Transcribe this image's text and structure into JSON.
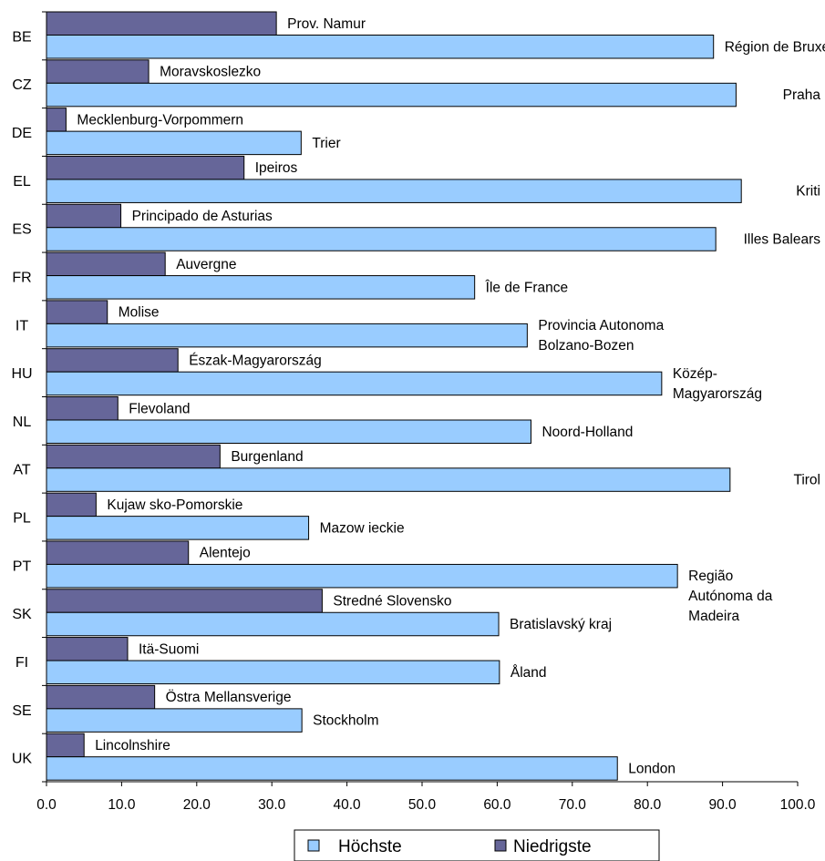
{
  "chart_data": {
    "type": "bar",
    "orientation": "horizontal",
    "categories": [
      "BE",
      "CZ",
      "DE",
      "EL",
      "ES",
      "FR",
      "IT",
      "HU",
      "NL",
      "AT",
      "PL",
      "PT",
      "SK",
      "FI",
      "SE",
      "UK"
    ],
    "series": [
      {
        "name": "Niedrigste",
        "color": "#666699",
        "values": [
          30.6,
          13.6,
          2.6,
          26.3,
          9.9,
          15.8,
          8.1,
          17.5,
          9.5,
          23.1,
          6.6,
          18.9,
          36.7,
          10.8,
          14.4,
          5.0
        ],
        "labels": [
          "Prov. Namur",
          "Moravskoslezko",
          "Mecklenburg-Vorpommern",
          "Ipeiros",
          "Principado de Asturias",
          "Auvergne",
          "Molise",
          "Észak-Magyarország",
          "Flevoland",
          "Burgenland",
          "Kujaw sko-Pomorskie",
          "Alentejo",
          "Stredné Slovensko",
          "Itä-Suomi",
          "Östra Mellansverige",
          "Lincolnshire"
        ]
      },
      {
        "name": "Höchste",
        "color": "#99CCFF",
        "values": [
          88.8,
          91.8,
          33.9,
          92.5,
          89.1,
          57.0,
          64.0,
          81.9,
          64.5,
          91.0,
          34.9,
          84.0,
          60.2,
          60.3,
          34.0,
          76.0
        ],
        "labels": [
          "Région de Bruxelles-Capitale",
          "Praha",
          "Trier",
          "Kriti",
          "Illes Balears",
          "Île de France",
          "Provincia Autonoma\nBolzano-Bozen",
          "Közép-\nMagyarország",
          "Noord-Holland",
          "Tirol",
          "Mazow ieckie",
          "Região\nAutónoma da\nMadeira",
          "Bratislavský kraj",
          "Åland",
          "Stockholm",
          "London"
        ]
      }
    ],
    "xlim": [
      0,
      100
    ],
    "xticks": [
      "0.0",
      "10.0",
      "20.0",
      "30.0",
      "40.0",
      "50.0",
      "60.0",
      "70.0",
      "80.0",
      "90.0",
      "100.0"
    ],
    "legend": {
      "position": "bottom",
      "entries": [
        {
          "label": "Höchste",
          "color": "#99CCFF"
        },
        {
          "label": "Niedrigste",
          "color": "#666699"
        }
      ]
    },
    "grid": false,
    "title": "",
    "xlabel": "",
    "ylabel": ""
  }
}
